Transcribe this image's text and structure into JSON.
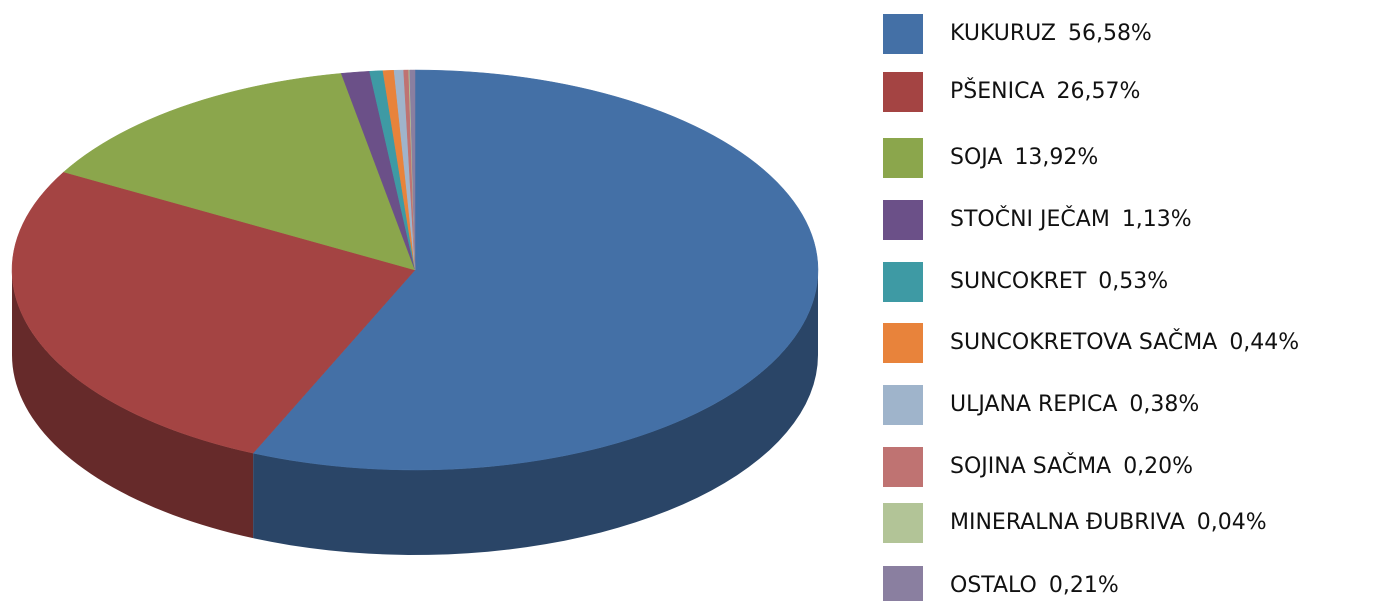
{
  "chart_data": {
    "type": "pie",
    "categories": [
      "KUKURUZ",
      "PŠENICA",
      "SOJA",
      "STOČNI JEČAM",
      "SUNCOKRET",
      "SUNCOKRETOVA SAČMA",
      "ULJANA REPICA",
      "SOJINA SAČMA",
      "MINERALNA ĐUBRIVA",
      "OSTALO"
    ],
    "values": [
      56.58,
      26.57,
      13.92,
      1.13,
      0.53,
      0.44,
      0.38,
      0.2,
      0.04,
      0.21
    ],
    "value_labels": [
      "56,58%",
      "26,57%",
      "13,92%",
      "1,13%",
      "0,53%",
      "0,44%",
      "0,38%",
      "0,20%",
      "0,04%",
      "0,21%"
    ],
    "colors": [
      "#4470a6",
      "#a44443",
      "#8ba64c",
      "#6b5088",
      "#3e9aa4",
      "#e8833b",
      "#9fb4cb",
      "#bf7372",
      "#b2c497",
      "#8a7fa0"
    ],
    "legend": "right"
  }
}
